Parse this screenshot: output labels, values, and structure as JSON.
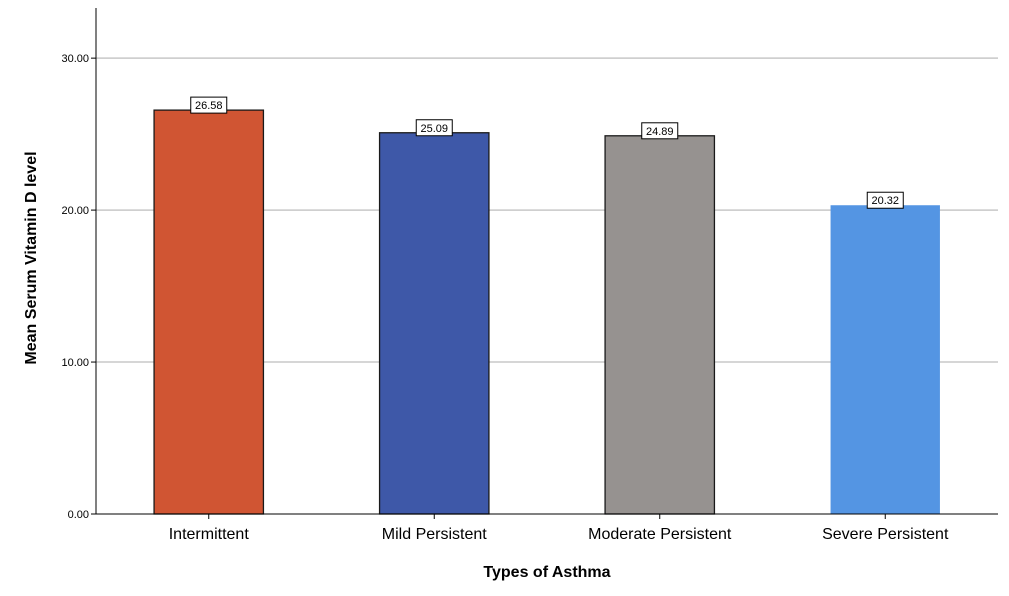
{
  "chart_data": {
    "type": "bar",
    "title": "",
    "xlabel": "Types of Asthma",
    "ylabel": "Mean Serum Vitamin D level",
    "categories": [
      "Intermittent",
      "Mild Persistent",
      "Moderate Persistent",
      "Severe Persistent"
    ],
    "values": [
      26.58,
      25.09,
      24.89,
      20.32
    ],
    "data_labels": [
      "26.58",
      "25.09",
      "24.89",
      "20.32"
    ],
    "yticks": [
      0,
      10,
      20,
      30
    ],
    "ytick_labels": [
      "0.00",
      "10.00",
      "20.00",
      "30.00"
    ],
    "ylim": [
      0,
      33.3
    ],
    "grid": true,
    "legend": false,
    "colors": [
      "#D05533",
      "#3E58A8",
      "#969290",
      "#5495E3"
    ],
    "bar_outlines": [
      true,
      true,
      true,
      false
    ]
  }
}
